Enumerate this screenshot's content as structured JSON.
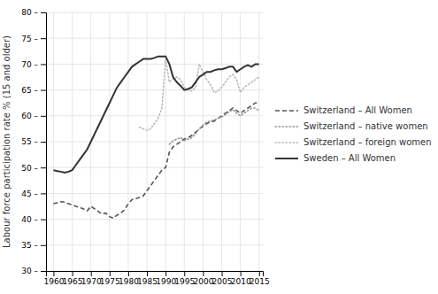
{
  "chart_data": {
    "type": "line",
    "ylabel": "Labour force participation rate % (15 and older)",
    "x": [
      1960,
      1961,
      1962,
      1963,
      1964,
      1965,
      1966,
      1967,
      1968,
      1969,
      1970,
      1971,
      1972,
      1973,
      1974,
      1975,
      1976,
      1977,
      1978,
      1979,
      1980,
      1981,
      1982,
      1983,
      1984,
      1985,
      1986,
      1987,
      1988,
      1989,
      1990,
      1991,
      1992,
      1993,
      1994,
      1995,
      1996,
      1997,
      1998,
      1999,
      2000,
      2001,
      2002,
      2003,
      2004,
      2005,
      2006,
      2007,
      2008,
      2009,
      2010,
      2011,
      2012,
      2013,
      2014,
      2015
    ],
    "xlim": [
      1958,
      2016
    ],
    "xticks": [
      1960,
      1965,
      1970,
      1975,
      1980,
      1985,
      1990,
      1995,
      2000,
      2005,
      2010,
      2015
    ],
    "ylim": [
      30,
      80
    ],
    "yticks": [
      {
        "value": 30,
        "label": "30 –"
      },
      {
        "value": 35,
        "label": "35 –"
      },
      {
        "value": 40,
        "label": "40 –"
      },
      {
        "value": 45,
        "label": "45 –"
      },
      {
        "value": 50,
        "label": "50 –"
      },
      {
        "value": 55,
        "label": "55 –"
      },
      {
        "value": 60,
        "label": "60 –"
      },
      {
        "value": 65,
        "label": "65 –"
      },
      {
        "value": 70,
        "label": "70 –"
      },
      {
        "value": 75,
        "label": "75 –"
      },
      {
        "value": 80,
        "label": "80 –"
      }
    ],
    "grid": true,
    "legend": "right",
    "series": [
      {
        "name": "Switzerland – All Women",
        "color": "#555555",
        "line_style": "dashed",
        "values": [
          43.0,
          43.2,
          43.4,
          43.3,
          43.0,
          42.8,
          42.5,
          42.3,
          42.0,
          41.6,
          42.5,
          42.0,
          41.5,
          41.0,
          41.2,
          40.5,
          40.2,
          40.8,
          41.2,
          41.8,
          43.0,
          43.8,
          44.0,
          44.2,
          44.5,
          45.5,
          46.5,
          47.5,
          48.5,
          49.5,
          50.0,
          53.0,
          54.0,
          54.5,
          55.0,
          55.5,
          55.8,
          56.2,
          56.8,
          57.5,
          58.0,
          58.5,
          58.8,
          59.0,
          59.5,
          60.0,
          60.5,
          61.0,
          61.5,
          61.0,
          60.5,
          61.0,
          61.5,
          62.0,
          62.5,
          62.5
        ]
      },
      {
        "name": "Switzerland – native women",
        "color": "#999999",
        "line_style": "dotted",
        "values": [
          null,
          null,
          null,
          null,
          null,
          null,
          null,
          null,
          null,
          null,
          null,
          null,
          null,
          null,
          null,
          null,
          null,
          null,
          null,
          null,
          null,
          null,
          null,
          null,
          null,
          null,
          null,
          null,
          null,
          null,
          null,
          54.5,
          55.2,
          55.5,
          55.8,
          55.2,
          55.5,
          55.8,
          56.5,
          57.5,
          58.2,
          58.8,
          59.0,
          59.2,
          59.5,
          59.8,
          60.2,
          60.8,
          61.2,
          60.5,
          60.0,
          60.5,
          61.0,
          61.5,
          61.5,
          61.0
        ]
      },
      {
        "name": "Switzerland – foreign women",
        "color": "#bbbbbb",
        "line_style": "dotted",
        "values": [
          null,
          null,
          null,
          null,
          null,
          null,
          null,
          null,
          null,
          null,
          null,
          null,
          null,
          null,
          null,
          null,
          null,
          null,
          null,
          null,
          null,
          null,
          null,
          57.8,
          57.5,
          57.2,
          57.5,
          58.5,
          59.5,
          61.5,
          71.0,
          66.5,
          67.2,
          67.5,
          67.0,
          65.5,
          65.0,
          64.8,
          65.5,
          70.0,
          68.5,
          67.0,
          66.0,
          64.5,
          64.8,
          65.5,
          66.5,
          67.5,
          68.0,
          67.0,
          64.5,
          65.5,
          66.0,
          66.5,
          67.0,
          67.5
        ]
      },
      {
        "name": "Sweden – All Women",
        "color": "#333333",
        "line_style": "solid",
        "values": [
          49.5,
          49.3,
          49.2,
          49.0,
          49.2,
          49.5,
          50.5,
          51.5,
          52.5,
          53.5,
          55.0,
          56.5,
          58.0,
          59.5,
          61.0,
          62.5,
          64.0,
          65.5,
          66.5,
          67.5,
          68.5,
          69.5,
          70.0,
          70.5,
          71.0,
          71.0,
          71.0,
          71.2,
          71.5,
          71.5,
          71.5,
          70.0,
          67.5,
          66.5,
          65.8,
          65.0,
          65.2,
          65.5,
          66.5,
          67.5,
          68.0,
          68.5,
          68.5,
          68.8,
          69.0,
          69.0,
          69.2,
          69.5,
          69.5,
          68.5,
          69.0,
          69.5,
          69.8,
          69.5,
          70.0,
          70.0
        ]
      }
    ]
  }
}
